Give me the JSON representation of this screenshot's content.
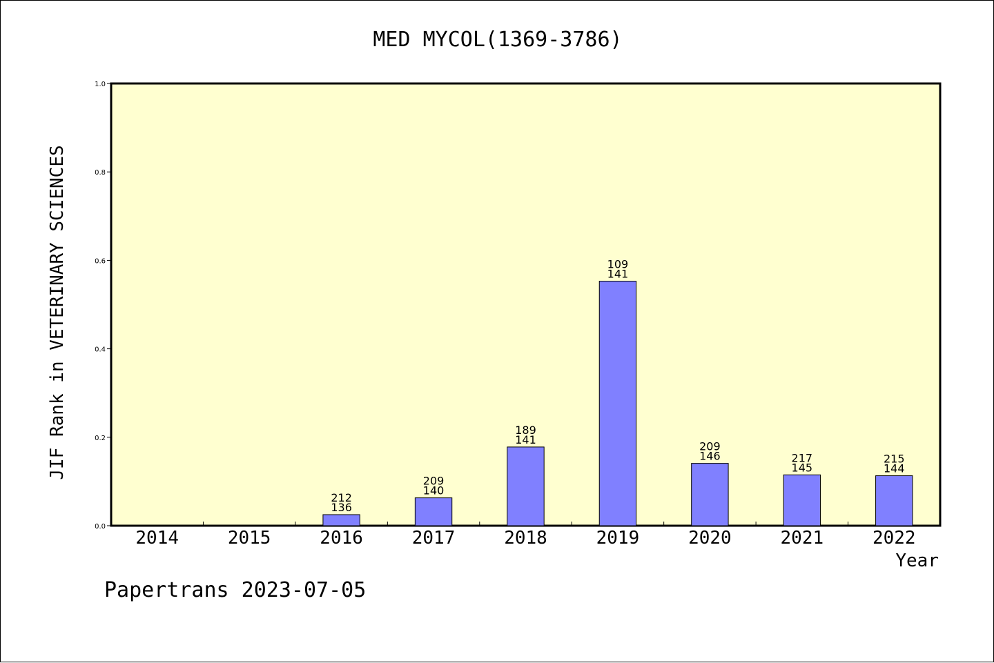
{
  "chart_data": {
    "type": "bar",
    "title": "MED MYCOL(1369-3786)",
    "xlabel": "Year",
    "ylabel": "JIF Rank in VETERINARY SCIENCES",
    "footer": "Papertrans 2023-07-05",
    "categories": [
      "2014",
      "2015",
      "2016",
      "2017",
      "2018",
      "2019",
      "2020",
      "2021",
      "2022"
    ],
    "values": [
      null,
      null,
      0.025,
      0.063,
      0.178,
      0.553,
      0.141,
      0.115,
      0.113
    ],
    "label_top": [
      "",
      "",
      "212",
      "209",
      "189",
      "109",
      "209",
      "217",
      "215"
    ],
    "label_bottom": [
      "",
      "",
      "136",
      "140",
      "141",
      "141",
      "146",
      "145",
      "144"
    ],
    "ylim": [
      0,
      1.0
    ],
    "yticks": [
      "0.0",
      "0.2",
      "0.4",
      "0.6",
      "0.8",
      "1.0"
    ],
    "grid": false,
    "colors": {
      "plot_background": "#ffffd0",
      "bar_fill": "#8080ff",
      "bar_stroke": "#000000",
      "axis": "#000000"
    }
  }
}
